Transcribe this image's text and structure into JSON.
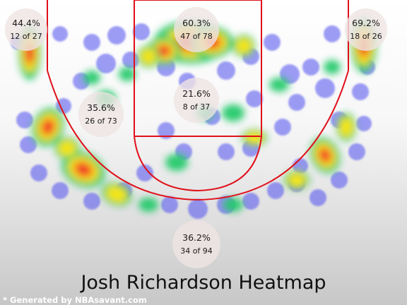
{
  "chart_data": {
    "type": "heatmap",
    "title": "Josh Richardson Heatmap",
    "credit": "* Generated by NBAsavant.com",
    "colors": {
      "court_line": "#e0101a",
      "low": "#5a5af0",
      "mid": "#21c96a",
      "high": "#f02c2c",
      "zone_marker": "#efe4e4"
    },
    "zones": [
      {
        "name": "left-corner-three",
        "pct": "44.4%",
        "made": 12,
        "attempts": 27,
        "label": "12 of 27"
      },
      {
        "name": "restricted-area",
        "pct": "60.3%",
        "made": 47,
        "attempts": 78,
        "label": "47 of 78"
      },
      {
        "name": "right-corner-three",
        "pct": "69.2%",
        "made": 18,
        "attempts": 26,
        "label": "18 of 26"
      },
      {
        "name": "left-mid-range",
        "pct": "35.6%",
        "made": 26,
        "attempts": 73,
        "label": "26 of 73"
      },
      {
        "name": "paint-non-ra",
        "pct": "21.6%",
        "made": 8,
        "attempts": 37,
        "label": "8 of 37"
      },
      {
        "name": "above-break-three",
        "pct": "36.2%",
        "made": 34,
        "attempts": 94,
        "label": "34 of 94"
      }
    ],
    "hotspots": [
      {
        "zone": "restricted-area",
        "intensity": 1.0
      },
      {
        "zone": "left-wing-three",
        "intensity": 1.0
      },
      {
        "zone": "left-elbow-three",
        "intensity": 0.9
      },
      {
        "zone": "right-corner-three",
        "intensity": 0.9
      },
      {
        "zone": "left-corner-three",
        "intensity": 0.85
      },
      {
        "zone": "right-wing-three",
        "intensity": 0.85
      }
    ]
  }
}
